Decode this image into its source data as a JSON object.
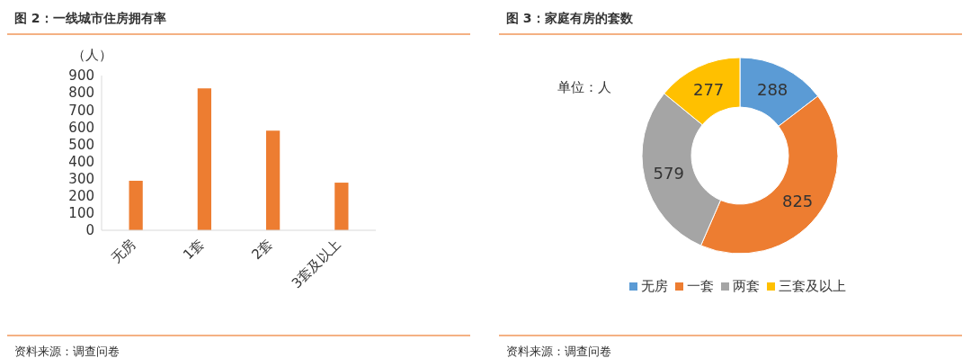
{
  "chart_data": [
    {
      "type": "bar",
      "title": "图 2：一线城市住房拥有率",
      "ylabel": "（人）",
      "categories": [
        "无房",
        "1套",
        "2套",
        "3套及以上"
      ],
      "values": [
        288,
        825,
        579,
        277
      ],
      "color": "#ed7d31",
      "ylim": [
        0,
        900
      ],
      "yticks": [
        0,
        100,
        200,
        300,
        400,
        500,
        600,
        700,
        800,
        900
      ],
      "grid": false,
      "annotations": [
        "资料来源：调查问卷"
      ]
    },
    {
      "type": "donut",
      "title": "图 3：家庭有房的套数",
      "categories": [
        "无房",
        "一套",
        "两套",
        "三套及以上"
      ],
      "values": [
        288,
        825,
        579,
        277
      ],
      "colors": [
        "#5b9bd5",
        "#ed7d31",
        "#a5a5a5",
        "#ffc000"
      ],
      "data_labels": true,
      "legend": "bottom",
      "annotations": [
        "单位：人",
        "资料来源：调查问卷"
      ]
    }
  ]
}
